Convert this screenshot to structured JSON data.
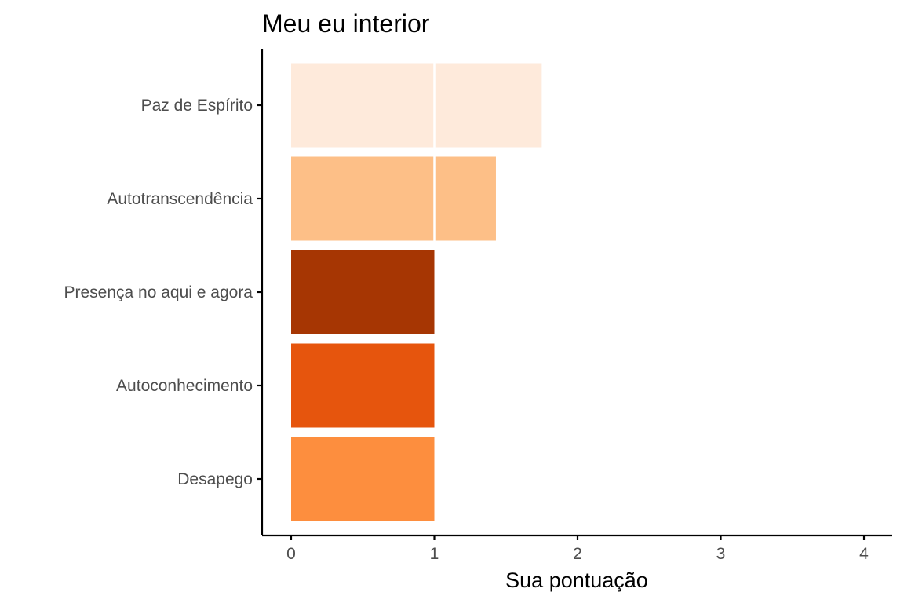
{
  "chart_data": {
    "type": "bar",
    "orientation": "horizontal",
    "title": "Meu eu interior",
    "xlabel": "Sua pontuação",
    "ylabel": "",
    "categories": [
      "Paz de Espírito",
      "Autotranscendência",
      "Presença no aqui e agora",
      "Autoconhecimento",
      "Desapego"
    ],
    "values": [
      1.75,
      1.43,
      1.0,
      1.0,
      1.0
    ],
    "colors": [
      "#feeadb",
      "#fdbf87",
      "#a63603",
      "#e6550d",
      "#fd8e3e"
    ],
    "xlim": [
      0,
      4
    ],
    "xticks": [
      0,
      1,
      2,
      3,
      4
    ],
    "grid": false,
    "legend": "none"
  }
}
